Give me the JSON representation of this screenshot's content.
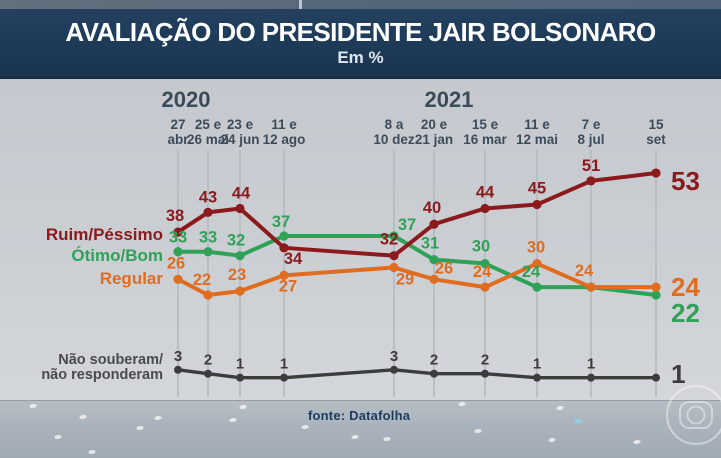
{
  "header": {
    "title": "AVALIAÇÃO DO PRESIDENTE JAIR BOLSONARO",
    "subtitle": "Em %"
  },
  "footer": {
    "source": "fonte: Datafolha"
  },
  "watermark": "globo-logo-watermark",
  "colors": {
    "header_bg": "#1d3a57",
    "ruim_pessimo": "#8c1a1d",
    "otimo_bom": "#2fa257",
    "regular": "#e06d1f",
    "nao_souberam": "#3c3c3c",
    "axis_text": "#3d4b59",
    "source_text": "#1f3c5c"
  },
  "chart_data": {
    "type": "line",
    "title": "AVALIAÇÃO DO PRESIDENTE JAIR BOLSONARO",
    "unit": "Em %",
    "grid": "vertical",
    "ylim": [
      0,
      60
    ],
    "year_labels": [
      {
        "label": "2020",
        "span": [
          0,
          3
        ]
      },
      {
        "label": "2021",
        "span": [
          4,
          9
        ]
      }
    ],
    "categories": [
      {
        "l1": "27",
        "l2": "abr"
      },
      {
        "l1": "25 e",
        "l2": "26 mai"
      },
      {
        "l1": "23 e",
        "l2": "24 jun"
      },
      {
        "l1": "11 e",
        "l2": "12 ago"
      },
      {
        "l1": "8 a",
        "l2": "10 dez"
      },
      {
        "l1": "20 e",
        "l2": "21 jan"
      },
      {
        "l1": "15 e",
        "l2": "16 mar"
      },
      {
        "l1": "11 e",
        "l2": "12 mai"
      },
      {
        "l1": "7 e",
        "l2": "8 jul"
      },
      {
        "l1": "15",
        "l2": "set"
      }
    ],
    "series": [
      {
        "name": "Ruim/Péssimo",
        "name_lines": [
          "Ruim/Péssimo"
        ],
        "color": "#8c1a1d",
        "values": [
          38,
          43,
          44,
          34,
          32,
          40,
          44,
          45,
          51,
          53
        ],
        "end_value": 53
      },
      {
        "name": "Ótimo/Bom",
        "name_lines": [
          "Ótimo/Bom"
        ],
        "color": "#2fa257",
        "values": [
          33,
          33,
          32,
          37,
          37,
          31,
          30,
          24,
          24,
          22
        ],
        "end_value": 22
      },
      {
        "name": "Regular",
        "name_lines": [
          "Regular"
        ],
        "color": "#e06d1f",
        "values": [
          26,
          22,
          23,
          27,
          29,
          26,
          24,
          30,
          24,
          24
        ],
        "end_value": 24
      },
      {
        "name": "Não souberam/não responderam",
        "name_lines": [
          "Não souberam/",
          "não responderam"
        ],
        "color": "#3c3c3c",
        "values": [
          3,
          2,
          1,
          1,
          3,
          2,
          2,
          1,
          1,
          1
        ],
        "end_value": 1
      }
    ],
    "source": "fonte: Datafolha",
    "legend_position": "left-of-lines"
  }
}
